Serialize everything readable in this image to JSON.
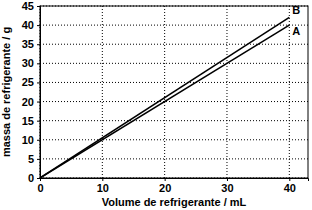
{
  "chart_data": {
    "type": "line",
    "x_label": "Volume de refrigerante / mL",
    "y_label": "massa de refrigerante / g",
    "x": [
      0,
      40
    ],
    "series": [
      {
        "name": "A",
        "color": "#000000",
        "values": [
          0,
          40
        ]
      },
      {
        "name": "B",
        "color": "#000000",
        "values": [
          0,
          42
        ]
      }
    ],
    "xlim": [
      0,
      43
    ],
    "xticks": [
      0,
      10,
      20,
      30,
      40
    ],
    "ylim": [
      0,
      45
    ],
    "yticks": [
      0,
      5,
      10,
      15,
      20,
      25,
      30,
      35,
      40,
      45
    ],
    "grid": true
  }
}
